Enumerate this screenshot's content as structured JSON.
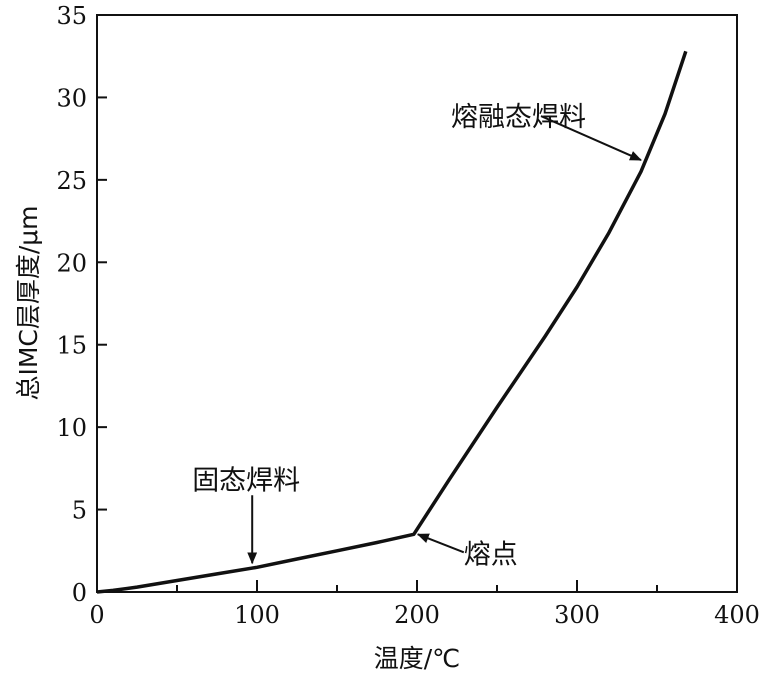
{
  "chart_data": {
    "type": "line",
    "title": "",
    "xlabel": "温度/℃",
    "ylabel": "总IMC层厚度/μm",
    "xlim": [
      0,
      400
    ],
    "ylim": [
      0,
      35
    ],
    "xticks": [
      0,
      100,
      200,
      300,
      400
    ],
    "yticks": [
      0,
      5,
      10,
      15,
      20,
      25,
      30,
      35
    ],
    "xtick_labels": [
      "0",
      "100",
      "200",
      "300",
      "400"
    ],
    "ytick_labels": [
      "0",
      "5",
      "10",
      "15",
      "20",
      "25",
      "30",
      "35"
    ],
    "grid": false,
    "series": [
      {
        "x": [
          0,
          10,
          25,
          50,
          75,
          100,
          125,
          150,
          175,
          198,
          220,
          250,
          280,
          300,
          320,
          340,
          355,
          368
        ],
        "y": [
          0,
          0.1,
          0.3,
          0.7,
          1.1,
          1.5,
          2.0,
          2.5,
          3.0,
          3.5,
          6.8,
          11.2,
          15.5,
          18.5,
          21.8,
          25.5,
          29.0,
          32.8
        ]
      }
    ],
    "annotations": [
      {
        "text": "熔融态焊料",
        "x": 340,
        "y": 26.2
      },
      {
        "text": "固态焊料",
        "x": 97,
        "y": 1.5
      },
      {
        "text": "熔点",
        "x": 198,
        "y": 3.5
      }
    ]
  }
}
